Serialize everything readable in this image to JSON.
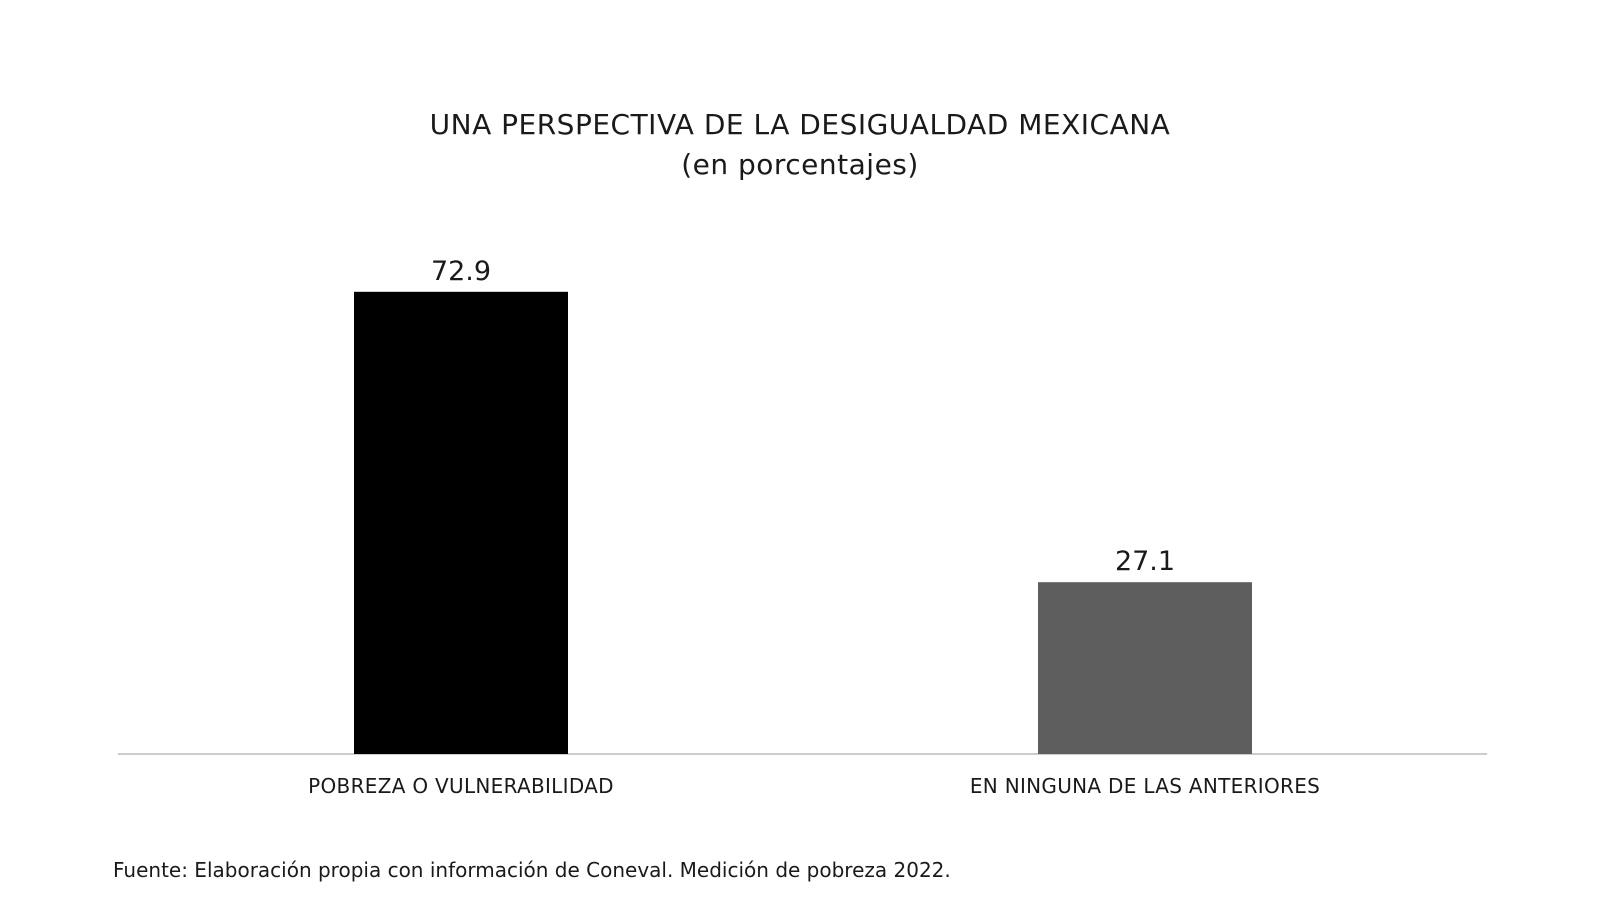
{
  "chart_data": {
    "type": "bar",
    "title": "UNA PERSPECTIVA DE LA DESIGUALDAD MEXICANA",
    "subtitle": "(en porcentajes)",
    "categories": [
      "POBREZA O VULNERABILIDAD",
      "EN NINGUNA DE LAS ANTERIORES"
    ],
    "values": [
      72.9,
      27.1
    ],
    "value_labels": [
      "72.9",
      "27.1"
    ],
    "colors": [
      "#000000",
      "#5e5e5e"
    ],
    "axis_color": "#cccccc",
    "xlabel": "",
    "ylabel": "",
    "ylim": [
      0,
      80
    ],
    "grid": false,
    "legend": "none"
  },
  "source": "Fuente: Elaboración propia con información de Coneval. Medición de pobreza 2022."
}
